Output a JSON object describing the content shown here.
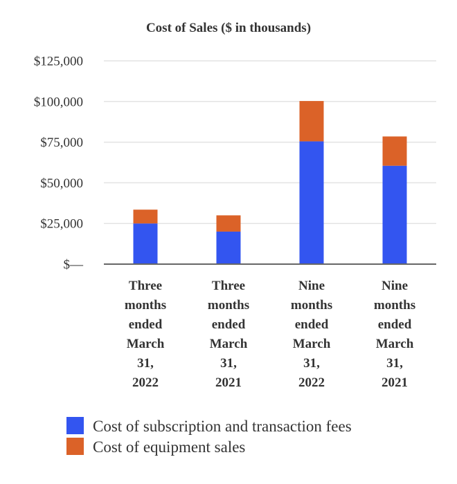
{
  "chart_data": {
    "type": "bar",
    "stacked": true,
    "title": "Cost of Sales ($ in thousands)",
    "categories": [
      [
        "Three",
        "months",
        "ended",
        "March",
        "31,",
        "2022"
      ],
      [
        "Three",
        "months",
        "ended",
        "March",
        "31,",
        "2021"
      ],
      [
        "Nine",
        "months",
        "ended",
        "March",
        "31,",
        "2022"
      ],
      [
        "Nine",
        "months",
        "ended",
        "March",
        "31,",
        "2021"
      ]
    ],
    "series": [
      {
        "name": "Cost of subscription and transaction fees",
        "color": "#3355f0",
        "values": [
          25000,
          20000,
          75500,
          60500
        ]
      },
      {
        "name": "Cost of equipment sales",
        "color": "#db6228",
        "values": [
          8500,
          10000,
          24800,
          18000
        ]
      }
    ],
    "yticks": [
      0,
      25000,
      50000,
      75000,
      100000,
      125000
    ],
    "ytick_labels": [
      "$—",
      "$25,000",
      "$50,000",
      "$75,000",
      "$100,000",
      "$125,000"
    ],
    "ylim": [
      0,
      125000
    ],
    "xlabel": "",
    "ylabel": "",
    "grid": true,
    "legend_position": "bottom-left"
  }
}
